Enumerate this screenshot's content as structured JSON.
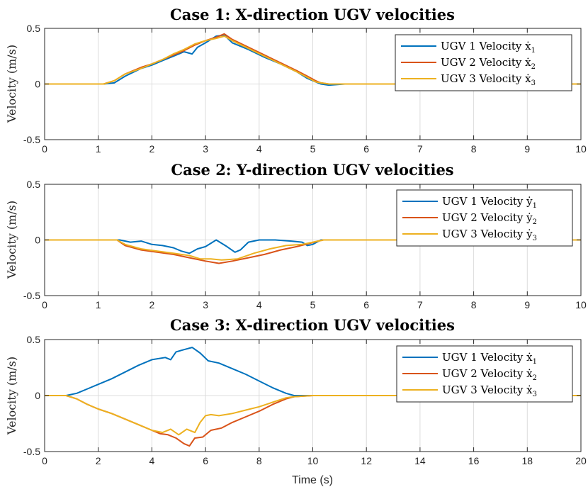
{
  "colors": {
    "ugv1": "#0072BD",
    "ugv2": "#D95319",
    "ugv3": "#EDB120"
  },
  "chart_data": [
    {
      "type": "line",
      "title": "Case 1: X-direction UGV velocities",
      "ylabel": "Velocity (m/s)",
      "xlabel": "",
      "xlim": [
        0,
        10
      ],
      "ylim": [
        -0.5,
        0.5
      ],
      "xticks": [
        0,
        1,
        2,
        3,
        4,
        5,
        6,
        7,
        8,
        9,
        10
      ],
      "yticks": [
        -0.5,
        0,
        0.5
      ],
      "xtick_labels": [
        "0",
        "1",
        "2",
        "3",
        "4",
        "5",
        "6",
        "7",
        "8",
        "9",
        "10"
      ],
      "ytick_labels": [
        "-0.5",
        "0",
        "0.5"
      ],
      "grid": true,
      "legend_position": "top-right",
      "series": [
        {
          "name": "UGV 1 Velocity",
          "legend_prefix": "UGV 1 Velocity ",
          "legend_var": "ẋ",
          "legend_sub": "1",
          "color_key": "ugv1",
          "x": [
            0,
            1.1,
            1.3,
            1.5,
            1.8,
            2.0,
            2.2,
            2.4,
            2.6,
            2.75,
            2.85,
            3.0,
            3.2,
            3.35,
            3.5,
            3.8,
            4.1,
            4.4,
            4.7,
            4.9,
            5.05,
            5.15,
            5.3,
            5.6,
            10
          ],
          "y": [
            0,
            0,
            0.01,
            0.07,
            0.14,
            0.17,
            0.21,
            0.25,
            0.29,
            0.27,
            0.33,
            0.37,
            0.43,
            0.44,
            0.37,
            0.31,
            0.24,
            0.18,
            0.11,
            0.05,
            0.02,
            0.0,
            -0.01,
            0,
            0
          ]
        },
        {
          "name": "UGV 2 Velocity",
          "legend_prefix": "UGV 2 Velocity ",
          "legend_var": "ẋ",
          "legend_sub": "2",
          "color_key": "ugv2",
          "x": [
            0,
            1.1,
            1.3,
            1.5,
            1.8,
            2.0,
            2.2,
            2.4,
            2.6,
            2.8,
            3.0,
            3.2,
            3.35,
            3.5,
            3.8,
            4.1,
            4.4,
            4.7,
            4.9,
            5.05,
            5.15,
            5.3,
            5.6,
            10
          ],
          "y": [
            0,
            0,
            0.03,
            0.09,
            0.15,
            0.18,
            0.22,
            0.26,
            0.3,
            0.35,
            0.39,
            0.42,
            0.45,
            0.4,
            0.33,
            0.26,
            0.19,
            0.12,
            0.07,
            0.03,
            0.01,
            0.0,
            0,
            0
          ]
        },
        {
          "name": "UGV 3 Velocity",
          "legend_prefix": "UGV 3 Velocity ",
          "legend_var": "ẋ",
          "legend_sub": "3",
          "color_key": "ugv3",
          "x": [
            0,
            1.1,
            1.3,
            1.5,
            1.8,
            2.0,
            2.2,
            2.4,
            2.6,
            2.8,
            3.0,
            3.2,
            3.35,
            3.5,
            3.8,
            4.1,
            4.4,
            4.7,
            4.9,
            5.05,
            5.15,
            5.3,
            5.6,
            10
          ],
          "y": [
            0,
            0,
            0.03,
            0.09,
            0.14,
            0.18,
            0.22,
            0.27,
            0.31,
            0.36,
            0.39,
            0.41,
            0.43,
            0.39,
            0.32,
            0.25,
            0.18,
            0.11,
            0.06,
            0.02,
            0.01,
            0.0,
            0,
            0
          ]
        }
      ]
    },
    {
      "type": "line",
      "title": "Case 2: Y-direction UGV velocities",
      "ylabel": "Velocity (m/s)",
      "xlabel": "",
      "xlim": [
        0,
        10
      ],
      "ylim": [
        -0.5,
        0.5
      ],
      "xticks": [
        0,
        1,
        2,
        3,
        4,
        5,
        6,
        7,
        8,
        9,
        10
      ],
      "yticks": [
        -0.5,
        0,
        0.5
      ],
      "xtick_labels": [
        "0",
        "1",
        "2",
        "3",
        "4",
        "5",
        "6",
        "7",
        "8",
        "9",
        "10"
      ],
      "ytick_labels": [
        "-0.5",
        "0",
        "0.5"
      ],
      "grid": true,
      "legend_position": "top-right",
      "series": [
        {
          "name": "UGV 1 Velocity",
          "legend_prefix": "UGV 1 Velocity ",
          "legend_var": "ẏ",
          "legend_sub": "1",
          "color_key": "ugv1",
          "x": [
            0,
            1.4,
            1.6,
            1.8,
            2.0,
            2.2,
            2.4,
            2.55,
            2.7,
            2.85,
            3.0,
            3.2,
            3.4,
            3.55,
            3.65,
            3.8,
            4.0,
            4.3,
            4.6,
            4.8,
            4.9,
            5.0,
            5.15,
            10
          ],
          "y": [
            0,
            0,
            -0.02,
            -0.01,
            -0.04,
            -0.05,
            -0.07,
            -0.1,
            -0.12,
            -0.08,
            -0.06,
            0,
            -0.06,
            -0.11,
            -0.09,
            -0.02,
            0,
            0,
            -0.01,
            -0.02,
            -0.05,
            -0.04,
            0,
            0
          ]
        },
        {
          "name": "UGV 2 Velocity",
          "legend_prefix": "UGV 2 Velocity ",
          "legend_var": "ẏ",
          "legend_sub": "2",
          "color_key": "ugv2",
          "x": [
            0,
            1.35,
            1.5,
            1.8,
            2.1,
            2.4,
            2.7,
            3.0,
            3.25,
            3.5,
            3.8,
            4.1,
            4.4,
            4.7,
            4.95,
            5.1,
            5.2,
            10
          ],
          "y": [
            0,
            0,
            -0.05,
            -0.09,
            -0.11,
            -0.13,
            -0.16,
            -0.19,
            -0.21,
            -0.19,
            -0.16,
            -0.13,
            -0.09,
            -0.06,
            -0.03,
            -0.01,
            0,
            0
          ]
        },
        {
          "name": "UGV 3 Velocity",
          "legend_prefix": "UGV 3 Velocity ",
          "legend_var": "ẏ",
          "legend_sub": "3",
          "color_key": "ugv3",
          "x": [
            0,
            1.35,
            1.5,
            1.8,
            2.1,
            2.4,
            2.7,
            2.9,
            3.1,
            3.3,
            3.6,
            3.9,
            4.2,
            4.5,
            4.8,
            5.0,
            5.2,
            10
          ],
          "y": [
            0,
            0,
            -0.04,
            -0.08,
            -0.1,
            -0.12,
            -0.14,
            -0.17,
            -0.17,
            -0.18,
            -0.17,
            -0.12,
            -0.08,
            -0.05,
            -0.04,
            -0.02,
            0,
            0
          ]
        }
      ]
    },
    {
      "type": "line",
      "title": "Case 3: X-direction UGV velocities",
      "ylabel": "Velocity (m/s)",
      "xlabel": "Time (s)",
      "xlim": [
        0,
        20
      ],
      "ylim": [
        -0.5,
        0.5
      ],
      "xticks": [
        0,
        2,
        4,
        6,
        8,
        10,
        12,
        14,
        16,
        18,
        20
      ],
      "yticks": [
        -0.5,
        0,
        0.5
      ],
      "xtick_labels": [
        "0",
        "2",
        "4",
        "6",
        "8",
        "10",
        "12",
        "14",
        "16",
        "18",
        "20"
      ],
      "ytick_labels": [
        "-0.5",
        "0",
        "0.5"
      ],
      "grid": true,
      "legend_position": "top-right",
      "series": [
        {
          "name": "UGV 1 Velocity",
          "legend_prefix": "UGV 1 Velocity ",
          "legend_var": "ẋ",
          "legend_sub": "1",
          "color_key": "ugv1",
          "x": [
            0,
            0.8,
            1.2,
            1.6,
            2.0,
            2.5,
            3.0,
            3.5,
            4.0,
            4.5,
            4.7,
            4.9,
            5.2,
            5.5,
            5.8,
            6.1,
            6.5,
            7.0,
            7.5,
            8.0,
            8.5,
            9.0,
            9.3,
            10,
            20
          ],
          "y": [
            0,
            0,
            0.02,
            0.06,
            0.1,
            0.15,
            0.21,
            0.27,
            0.32,
            0.34,
            0.32,
            0.39,
            0.41,
            0.43,
            0.38,
            0.31,
            0.29,
            0.24,
            0.19,
            0.13,
            0.07,
            0.02,
            0,
            0,
            0
          ]
        },
        {
          "name": "UGV 2 Velocity",
          "legend_prefix": "UGV 2 Velocity ",
          "legend_var": "ẋ",
          "legend_sub": "2",
          "color_key": "ugv2",
          "x": [
            0,
            0.8,
            1.2,
            1.6,
            2.0,
            2.5,
            3.0,
            3.5,
            4.0,
            4.3,
            4.6,
            4.9,
            5.2,
            5.4,
            5.6,
            5.9,
            6.2,
            6.6,
            7.0,
            7.5,
            8.0,
            8.5,
            9.0,
            9.3,
            10,
            20
          ],
          "y": [
            0,
            0,
            -0.03,
            -0.08,
            -0.12,
            -0.16,
            -0.21,
            -0.26,
            -0.31,
            -0.34,
            -0.35,
            -0.38,
            -0.43,
            -0.45,
            -0.38,
            -0.37,
            -0.31,
            -0.29,
            -0.24,
            -0.19,
            -0.14,
            -0.08,
            -0.03,
            -0.01,
            0,
            0
          ]
        },
        {
          "name": "UGV 3 Velocity",
          "legend_prefix": "UGV 3 Velocity ",
          "legend_var": "ẋ",
          "legend_sub": "3",
          "color_key": "ugv3",
          "x": [
            0,
            0.8,
            1.2,
            1.6,
            2.0,
            2.5,
            3.0,
            3.5,
            4.0,
            4.4,
            4.7,
            5.0,
            5.3,
            5.6,
            5.8,
            6.0,
            6.2,
            6.5,
            7.0,
            7.5,
            8.0,
            8.5,
            9.0,
            9.3,
            10,
            20
          ],
          "y": [
            0,
            0,
            -0.03,
            -0.08,
            -0.12,
            -0.16,
            -0.21,
            -0.26,
            -0.31,
            -0.33,
            -0.3,
            -0.35,
            -0.3,
            -0.33,
            -0.24,
            -0.18,
            -0.17,
            -0.18,
            -0.16,
            -0.13,
            -0.1,
            -0.06,
            -0.02,
            -0.01,
            0,
            0
          ]
        }
      ]
    }
  ]
}
